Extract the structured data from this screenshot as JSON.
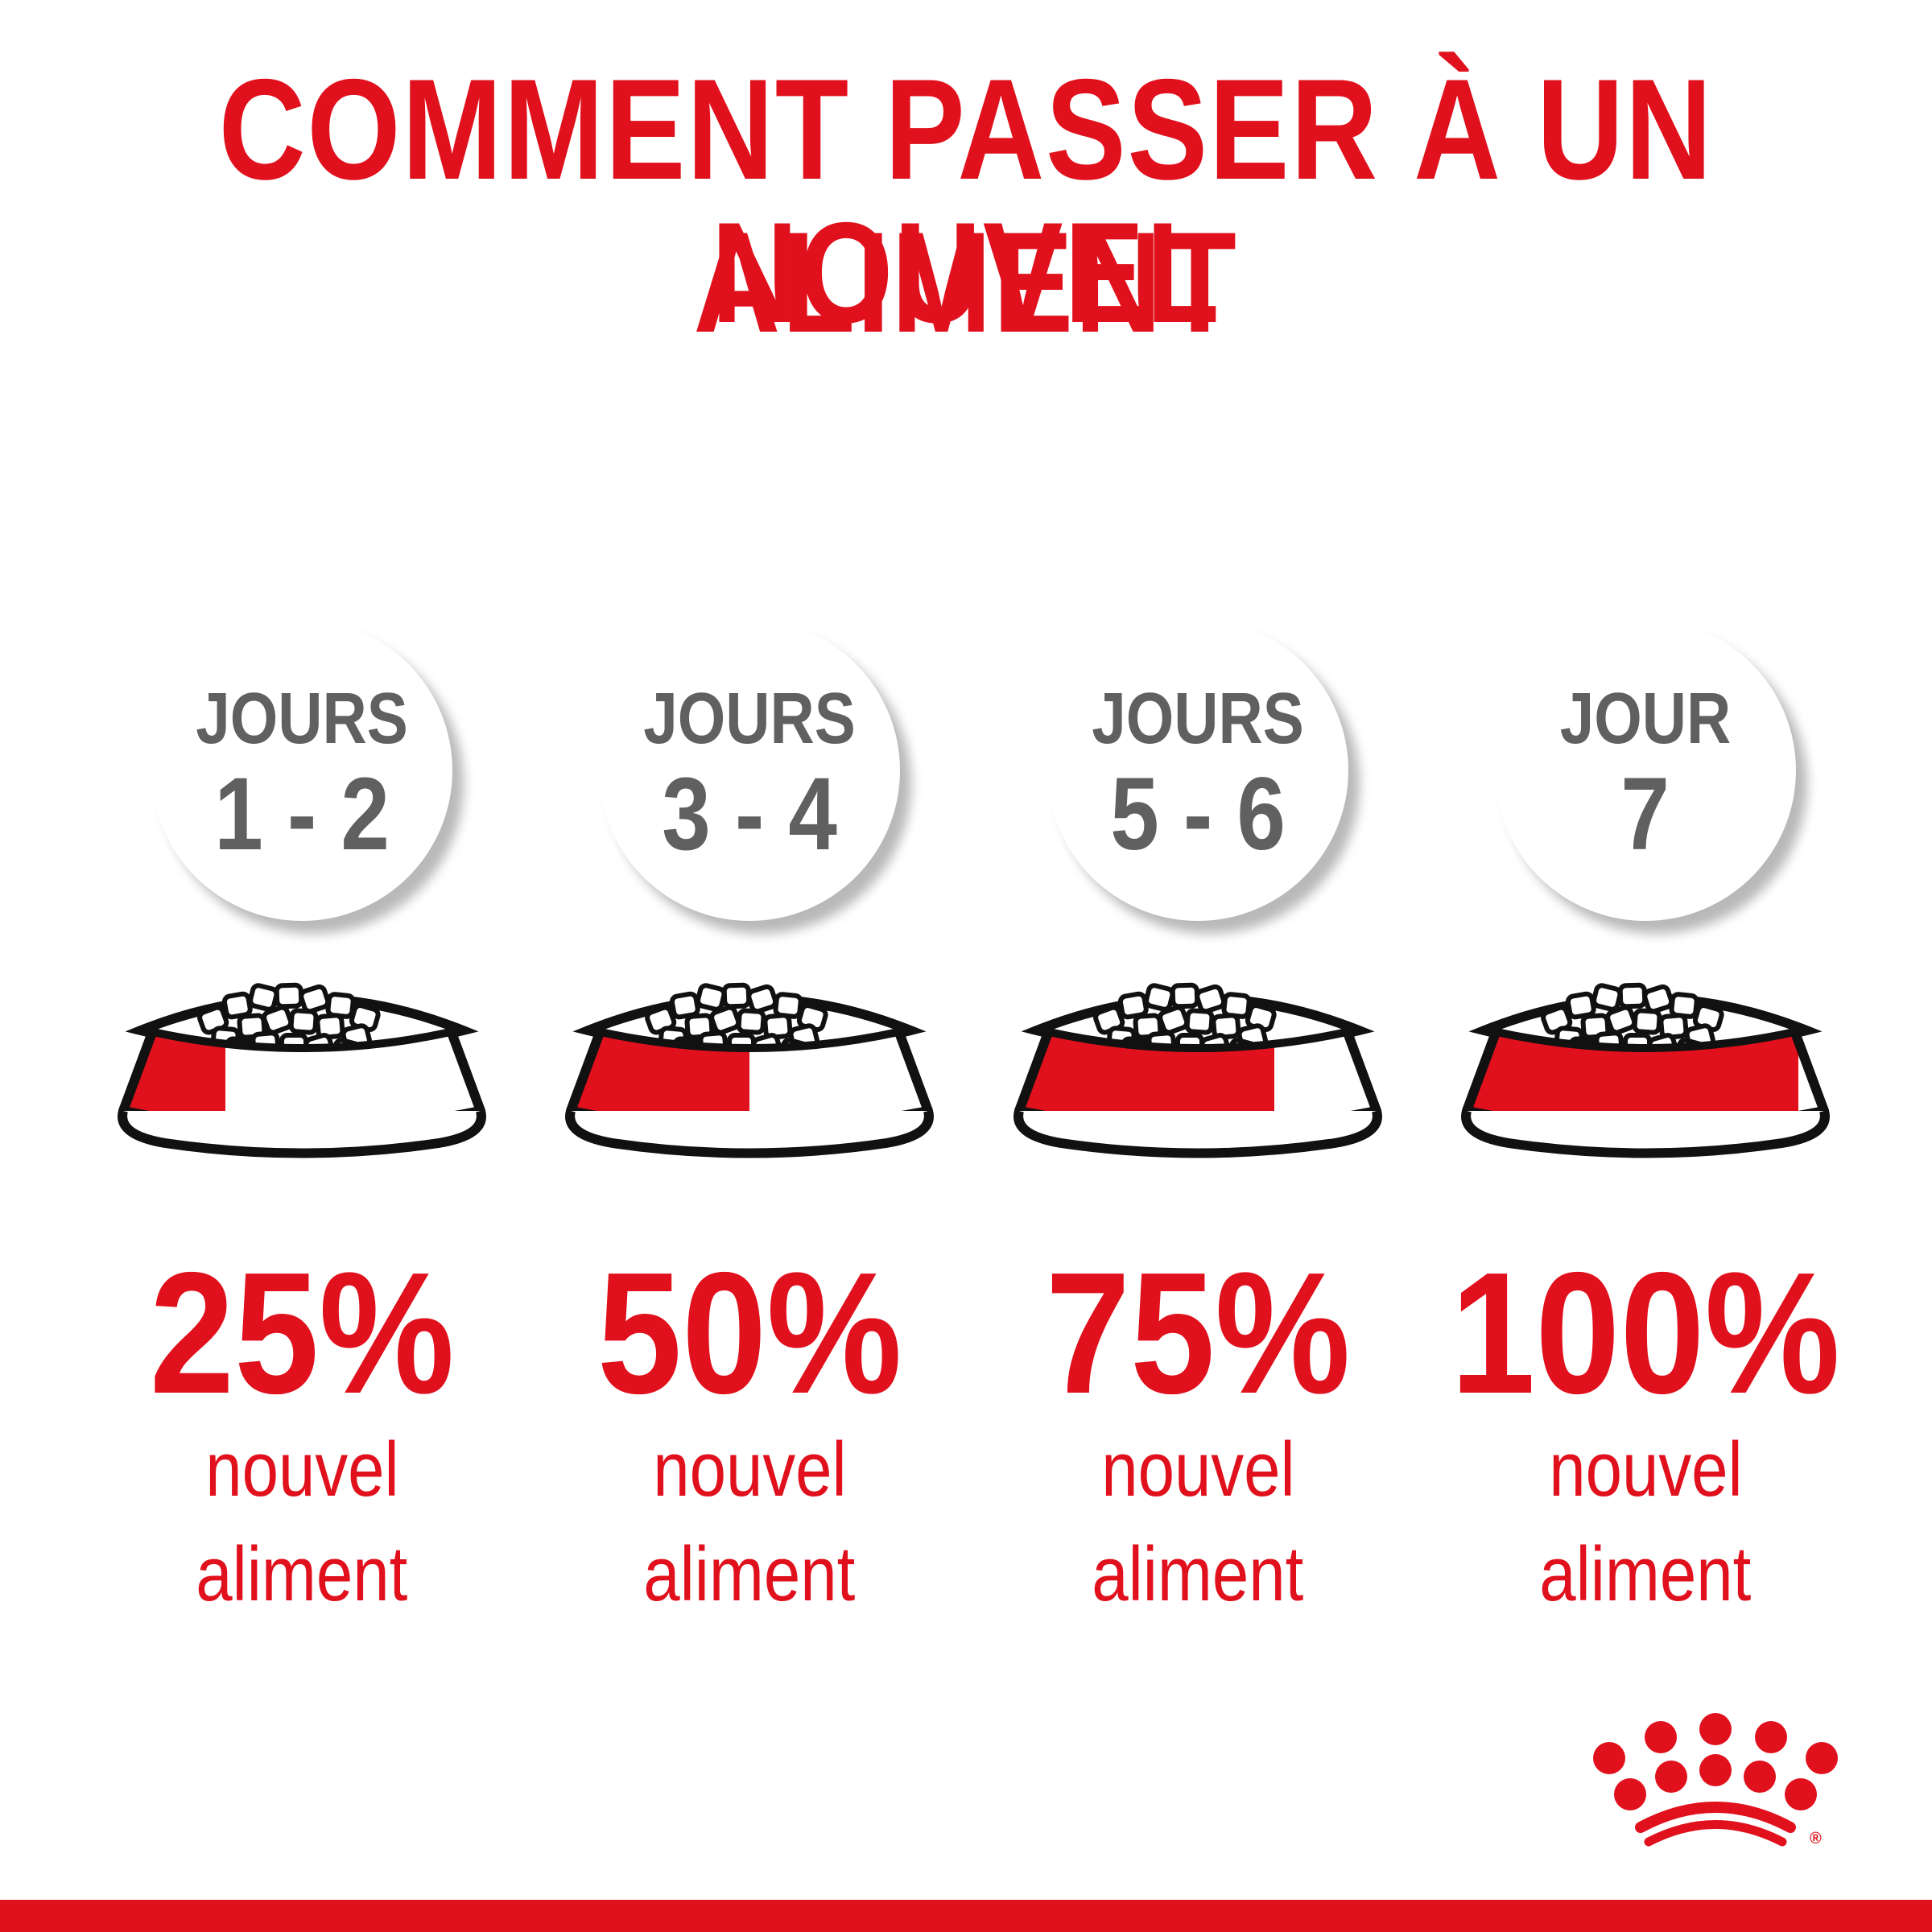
{
  "title": {
    "line1": "COMMENT PASSER À UN NOUVEL",
    "line2": "ALIMENT"
  },
  "colors": {
    "brand_red": "#e0101c",
    "gray_text": "#606060",
    "outline": "#111111"
  },
  "steps": [
    {
      "day_label": "JOURS",
      "days": "1 - 2",
      "percent": "25%",
      "fraction_new": 0.25,
      "line1": "nouvel",
      "line2": "aliment"
    },
    {
      "day_label": "JOURS",
      "days": "3 - 4",
      "percent": "50%",
      "fraction_new": 0.5,
      "line1": "nouvel",
      "line2": "aliment"
    },
    {
      "day_label": "JOURS",
      "days": "5 - 6",
      "percent": "75%",
      "fraction_new": 0.75,
      "line1": "nouvel",
      "line2": "aliment"
    },
    {
      "day_label": "JOUR",
      "days": "7",
      "percent": "100%",
      "fraction_new": 1.0,
      "line1": "nouvel",
      "line2": "aliment"
    }
  ],
  "logo": {
    "icon": "royal-canin-crown-logo",
    "mark": "®"
  }
}
